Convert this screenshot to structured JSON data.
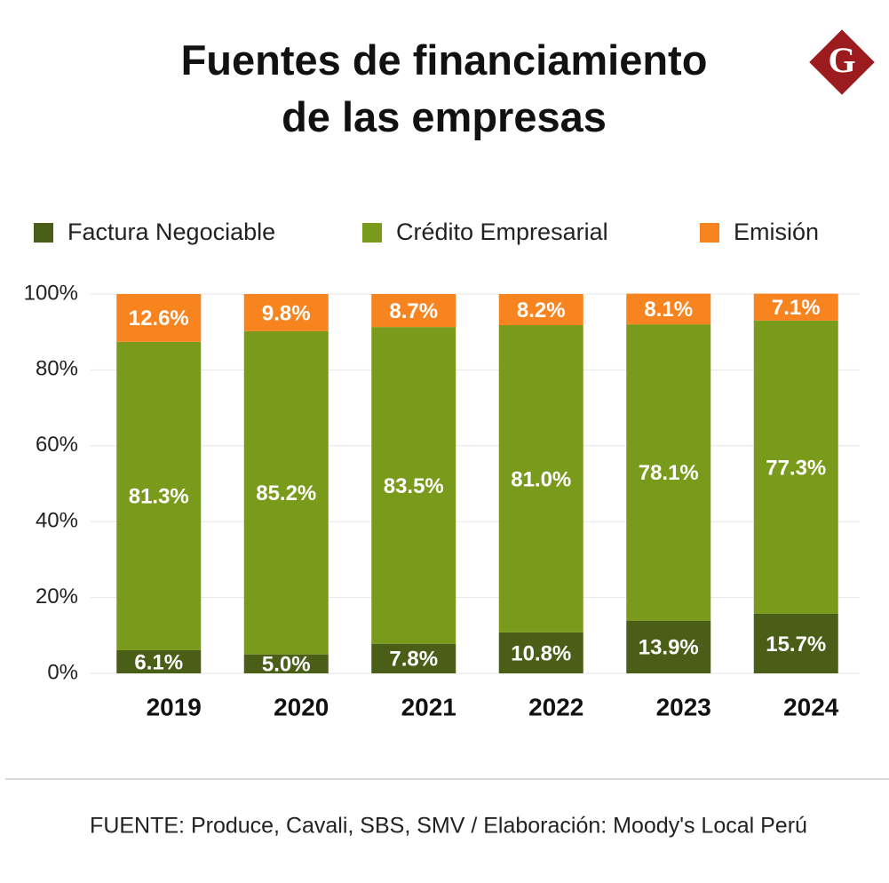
{
  "title": "Fuentes de financiamiento\nde las empresas",
  "logo": "G",
  "source": "FUENTE: Produce, Cavali, SBS, SMV / Elaboración: Moody's Local Perú",
  "chart_data": {
    "type": "stacked_bar",
    "categories": [
      "2019",
      "2020",
      "2021",
      "2022",
      "2023",
      "2024"
    ],
    "series": [
      {
        "name": "Factura Negociable",
        "color": "#4a5e17",
        "values": [
          6.1,
          5.0,
          7.8,
          10.8,
          13.9,
          15.7
        ],
        "value_labels": [
          "6.1%",
          "5.0%",
          "7.8%",
          "10.8%",
          "13.9%",
          "15.7%"
        ]
      },
      {
        "name": "Crédito Empresarial",
        "color": "#7a9a1c",
        "values": [
          81.3,
          85.2,
          83.5,
          81.0,
          78.1,
          77.3
        ],
        "value_labels": [
          "81.3%",
          "85.2%",
          "83.5%",
          "81.0%",
          "78.1%",
          "77.3%"
        ]
      },
      {
        "name": "Emisión",
        "color": "#f7841f",
        "values": [
          12.6,
          9.8,
          8.7,
          8.2,
          8.1,
          7.1
        ],
        "value_labels": [
          "12.6%",
          "9.8%",
          "8.7%",
          "8.2%",
          "8.1%",
          "7.1%"
        ]
      }
    ],
    "ylim": [
      0,
      100
    ],
    "yticks": [
      {
        "value": 0,
        "label": "0%"
      },
      {
        "value": 20,
        "label": "20%"
      },
      {
        "value": 40,
        "label": "40%"
      },
      {
        "value": 60,
        "label": "60%"
      },
      {
        "value": 80,
        "label": "80%"
      },
      {
        "value": 100,
        "label": "100%"
      }
    ],
    "grid": true
  }
}
